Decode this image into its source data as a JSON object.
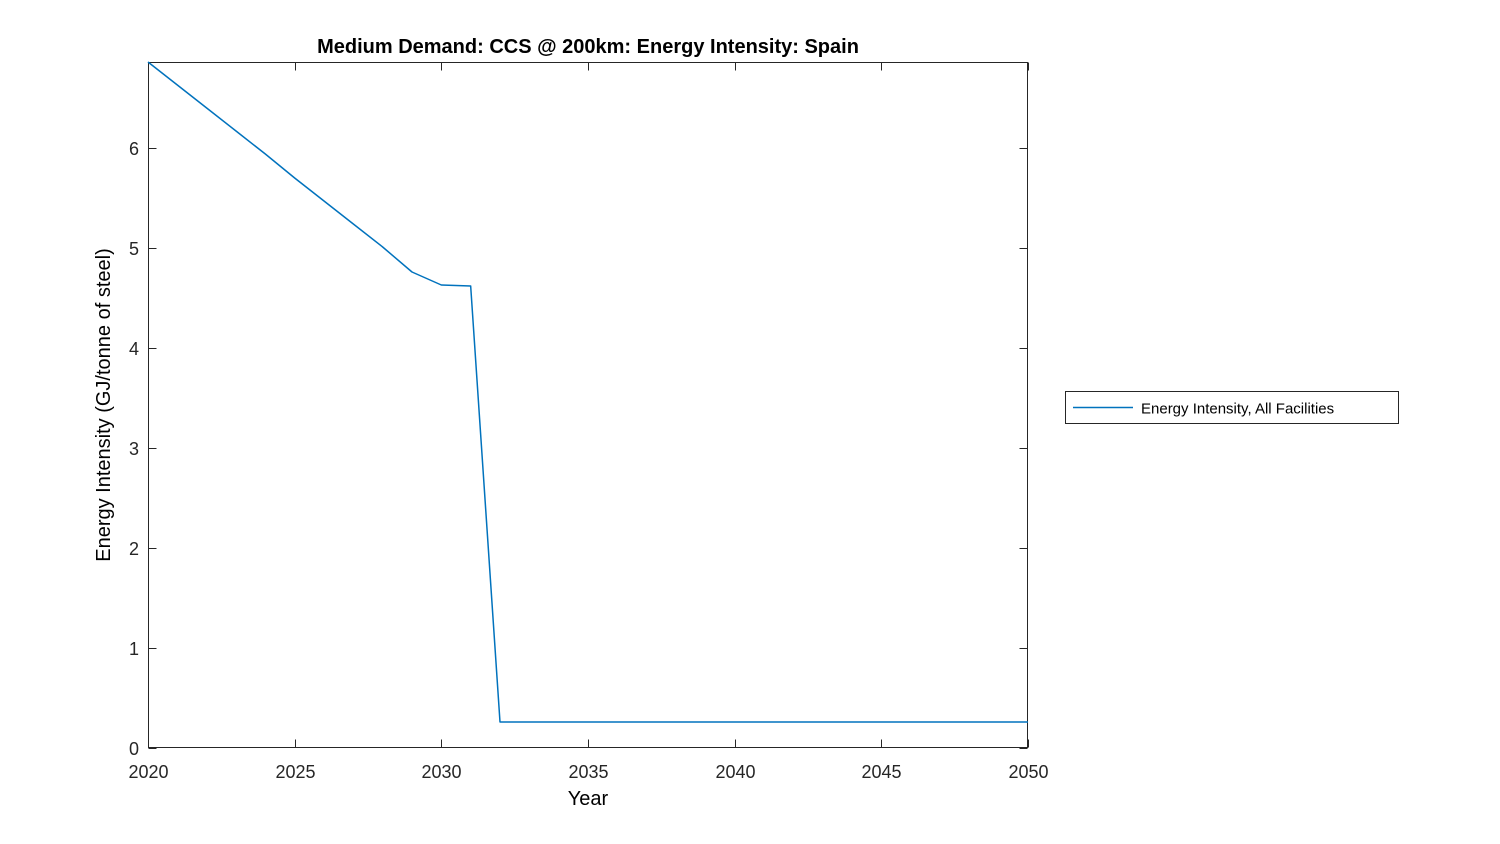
{
  "figure": {
    "background": "#ffffff",
    "title": "Medium Demand: CCS @ 200km: Energy Intensity: Spain",
    "xlabel": "Year",
    "ylabel": "Energy Intensity (GJ/tonne of steel)",
    "axis_color": "#262626",
    "text_color": "#000000"
  },
  "legend": {
    "label": "Energy Intensity, All Facilities",
    "line_color": "#0072BD",
    "border_color": "#262626",
    "background": "#ffffff"
  },
  "chart_data": {
    "type": "line",
    "title": "Medium Demand: CCS @ 200km: Energy Intensity: Spain",
    "xlabel": "Year",
    "ylabel": "Energy Intensity (GJ/tonne of steel)",
    "xlim": [
      2020,
      2050
    ],
    "ylim": [
      0,
      6.86
    ],
    "xticks": [
      2020,
      2025,
      2030,
      2035,
      2040,
      2045,
      2050
    ],
    "yticks": [
      0,
      1,
      2,
      3,
      4,
      5,
      6
    ],
    "grid": false,
    "box": true,
    "tick_direction": "in",
    "legend_position": "outside-right",
    "series": [
      {
        "name": "Energy Intensity, All Facilities",
        "color": "#0072BD",
        "x": [
          2020,
          2021,
          2022,
          2023,
          2024,
          2025,
          2026,
          2027,
          2028,
          2029,
          2030,
          2031,
          2032,
          2033,
          2034,
          2035,
          2036,
          2037,
          2038,
          2039,
          2040,
          2041,
          2042,
          2043,
          2044,
          2045,
          2046,
          2047,
          2048,
          2049,
          2050
        ],
        "y": [
          6.86,
          6.63,
          6.4,
          6.17,
          5.94,
          5.7,
          5.47,
          5.24,
          5.01,
          4.76,
          4.63,
          4.62,
          0.26,
          0.26,
          0.26,
          0.26,
          0.26,
          0.26,
          0.26,
          0.26,
          0.26,
          0.26,
          0.26,
          0.26,
          0.26,
          0.26,
          0.26,
          0.26,
          0.26,
          0.26,
          0.26
        ]
      }
    ]
  }
}
